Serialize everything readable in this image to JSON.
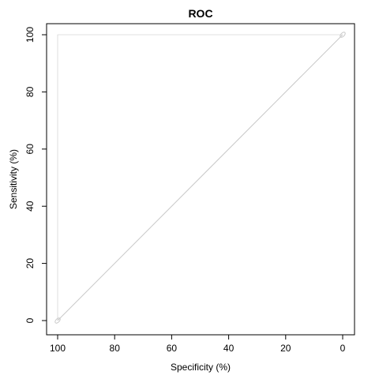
{
  "chart_data": {
    "type": "line",
    "title": "ROC",
    "xlabel": "Specificity (%)",
    "ylabel": "Sensitivity (%)",
    "xlim": [
      100,
      0
    ],
    "ylim": [
      0,
      100
    ],
    "x_reversed": true,
    "x_ticks": [
      100,
      80,
      60,
      40,
      20,
      0
    ],
    "y_ticks": [
      0,
      20,
      40,
      60,
      80,
      100
    ],
    "grid": false,
    "colors": {
      "diagonal": "#c8c8c8",
      "curve": "#d6d6d6",
      "axis": "#000000"
    },
    "series": [
      {
        "kind": "reference-diagonal",
        "x": [
          100,
          0
        ],
        "y": [
          0,
          100
        ]
      },
      {
        "kind": "roc-curve",
        "x": [
          100,
          100,
          100,
          100,
          100,
          100,
          0
        ],
        "y": [
          0,
          46,
          47,
          61,
          62,
          100,
          100
        ]
      }
    ],
    "markers": [
      {
        "x": 100,
        "y": 0
      },
      {
        "x": 0,
        "y": 100
      }
    ]
  }
}
